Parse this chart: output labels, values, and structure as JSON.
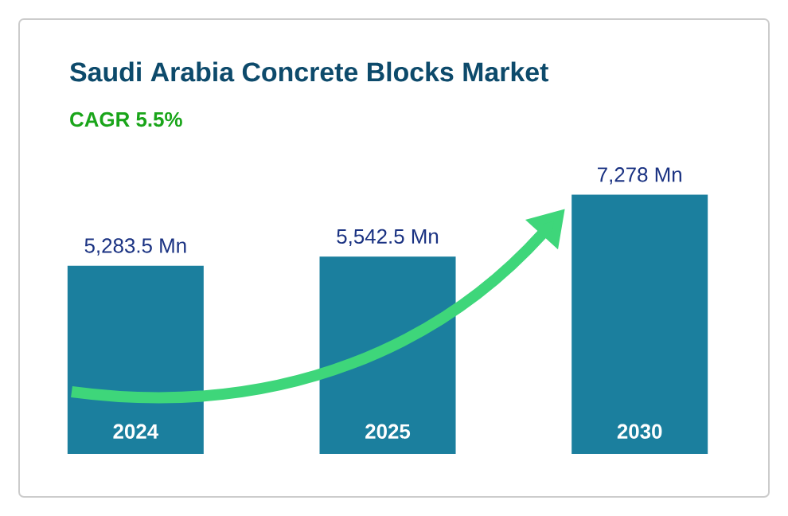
{
  "chart_data": {
    "type": "bar",
    "title": "Saudi Arabia Concrete Blocks Market",
    "subtitle": "CAGR 5.5%",
    "categories": [
      "2024",
      "2025",
      "2030"
    ],
    "values": [
      5283.5,
      5542.5,
      7278
    ],
    "value_labels": [
      "5,283.5 Mn",
      "5,542.5 Mn",
      "7,278 Mn"
    ],
    "color": "#1b7f9e"
  }
}
